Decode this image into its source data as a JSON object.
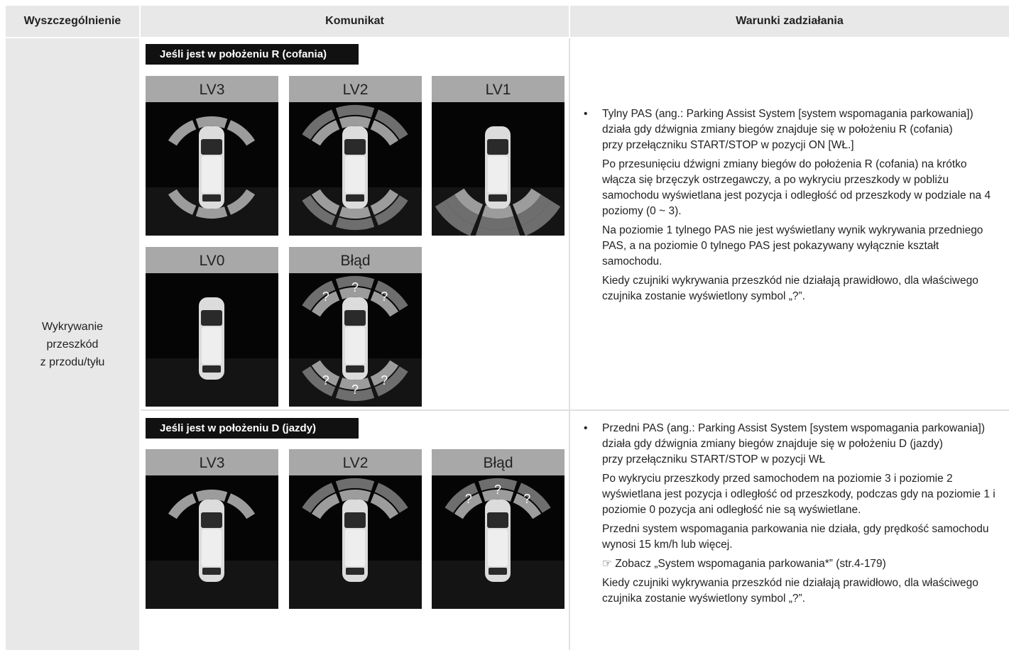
{
  "table": {
    "headers": [
      "Wyszczególnienie",
      "Komunikat",
      "Warunki zadziałania"
    ],
    "row_label": [
      "Wykrywanie",
      "przeszkód",
      "z przodu/tyłu"
    ],
    "sections": [
      {
        "mode": "Jeśli jest w położeniu R (cofania)",
        "panels": [
          {
            "label": "LV3"
          },
          {
            "label": "LV2"
          },
          {
            "label": "LV1"
          },
          {
            "label": "LV0"
          },
          {
            "label": "Błąd",
            "symbols": [
              "?",
              "?",
              "?",
              "?",
              "?",
              "?"
            ]
          }
        ],
        "bullet": [
          "Tylny PAS (ang.: Parking Assist System [system wspomagania parkowania])",
          "działa gdy dźwignia zmiany biegów znajduje się w położeniu R (cofania)",
          "przy przełączniku START/STOP w pozycji ON [WŁ.]"
        ],
        "notes": [
          "Po przesunięciu dźwigni zmiany biegów do położenia R (cofania) na krótko włącza się brzęczyk ostrzegawczy, a po wykryciu przeszkody w pobliżu samochodu wyświetlana jest pozycja i odległość od przeszkody w podziale na 4 poziomy (0 ~ 3).",
          "Na poziomie 1 tylnego PAS nie jest wyświetlany wynik wykrywania przedniego PAS, a na poziomie 0 tylnego PAS jest pokazywany wyłącznie kształt samochodu.",
          "Kiedy czujniki wykrywania przeszkód nie działają prawidłowo, dla właściwego czujnika zostanie wyświetlony symbol „?”."
        ]
      },
      {
        "mode": "Jeśli jest w położeniu D (jazdy)",
        "panels": [
          {
            "label": "LV3"
          },
          {
            "label": "LV2"
          },
          {
            "label": "Błąd",
            "symbols": [
              "?",
              "?",
              "?"
            ]
          }
        ],
        "bullet": [
          "Przedni PAS (ang.: Parking Assist System [system wspomagania parkowania])",
          "działa gdy dźwignia zmiany biegów znajduje się w położeniu D (jazdy)",
          "przy przełączniku START/STOP w pozycji WŁ"
        ],
        "notes": [
          "Po wykryciu przeszkody przed samochodem na poziomie 3 i poziomie 2 wyświetlana jest pozycja i odległość od przeszkody, podczas gdy na poziomie 1 i poziomie 0 pozycja ani odległość nie są wyświetlane.",
          "Przedni system wspomagania parkowania nie działa, gdy prędkość samochodu wynosi 15 km/h lub więcej.",
          "☞ Zobacz „System wspomagania parkowania*” (str.4-179)",
          "Kiedy czujniki wykrywania przeszkód nie działają prawidłowo, dla właściwego czujnika zostanie wyświetlony symbol „?”."
        ]
      }
    ]
  }
}
